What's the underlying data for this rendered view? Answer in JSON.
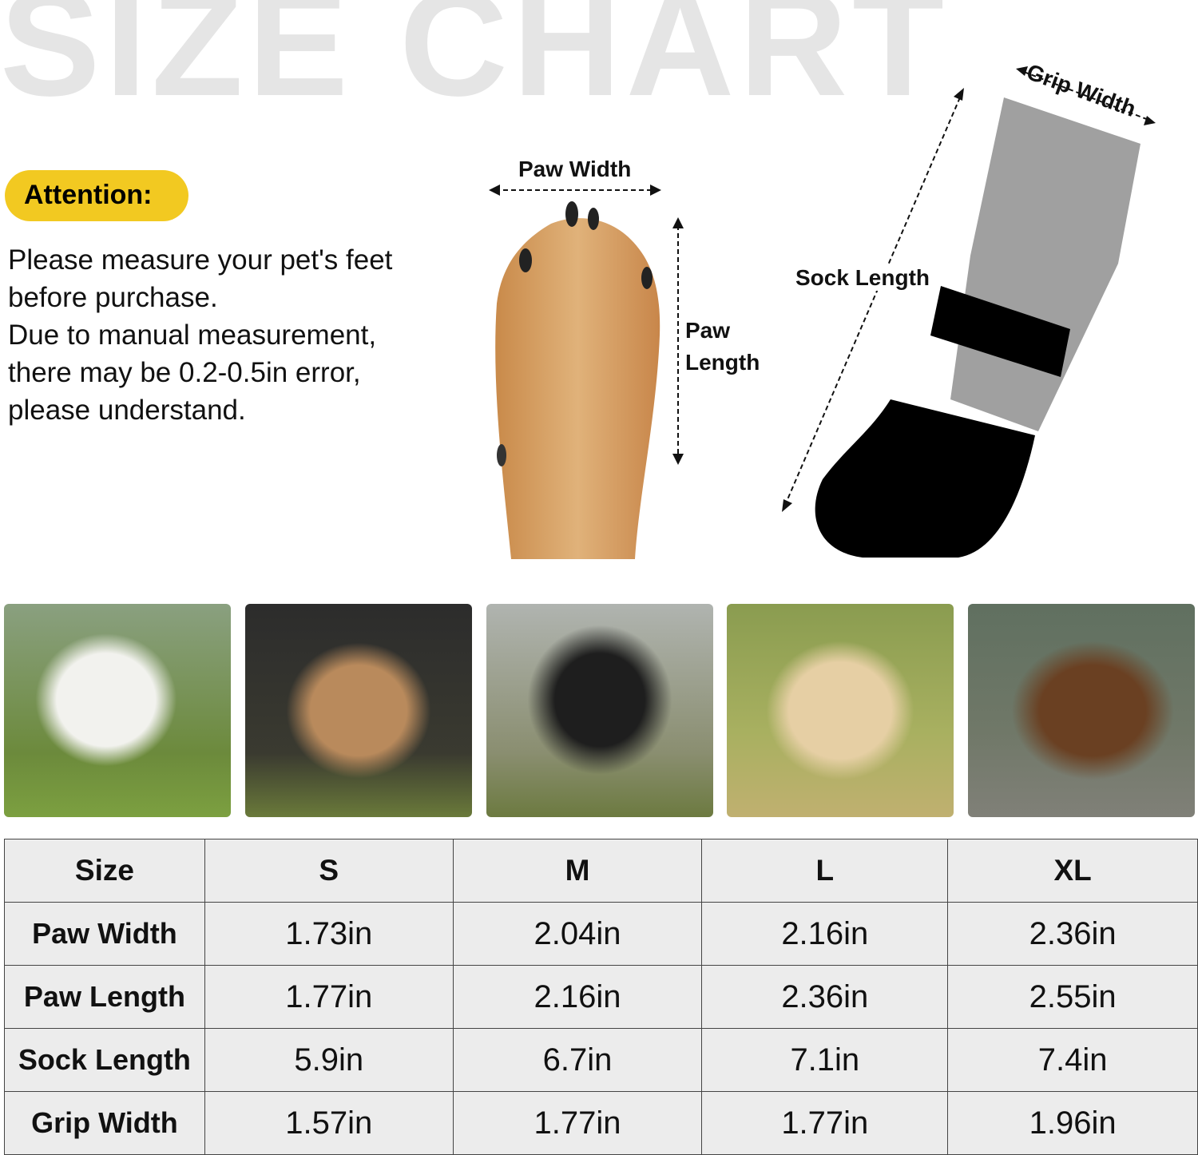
{
  "title": "SIZE CHART",
  "attention": {
    "label": "Attention:",
    "lines": [
      "Please measure your pet's feet",
      "before purchase.",
      "Due to manual measurement,",
      "there may be 0.2-0.5in error,",
      "please understand."
    ],
    "badge_color": "#f2c921"
  },
  "diagram": {
    "paw_width": "Paw Width",
    "paw_length_1": "Paw",
    "paw_length_2": "Length",
    "sock_length": "Sock Length",
    "grip_width": "Grip Width"
  },
  "photos": [
    "west-highland-terrier",
    "french-bulldog",
    "border-collie",
    "golden-retriever",
    "german-shepherd"
  ],
  "table": {
    "header": [
      "Size",
      "S",
      "M",
      "L",
      "XL"
    ],
    "rows": [
      {
        "label": "Paw Width",
        "values": [
          "1.73in",
          "2.04in",
          "2.16in",
          "2.36in"
        ]
      },
      {
        "label": "Paw Length",
        "values": [
          "1.77in",
          "2.16in",
          "2.36in",
          "2.55in"
        ]
      },
      {
        "label": "Sock Length",
        "values": [
          "5.9in",
          "6.7in",
          "7.1in",
          "7.4in"
        ]
      },
      {
        "label": "Grip Width",
        "values": [
          "1.57in",
          "1.77in",
          "1.77in",
          "1.96in"
        ]
      }
    ]
  }
}
